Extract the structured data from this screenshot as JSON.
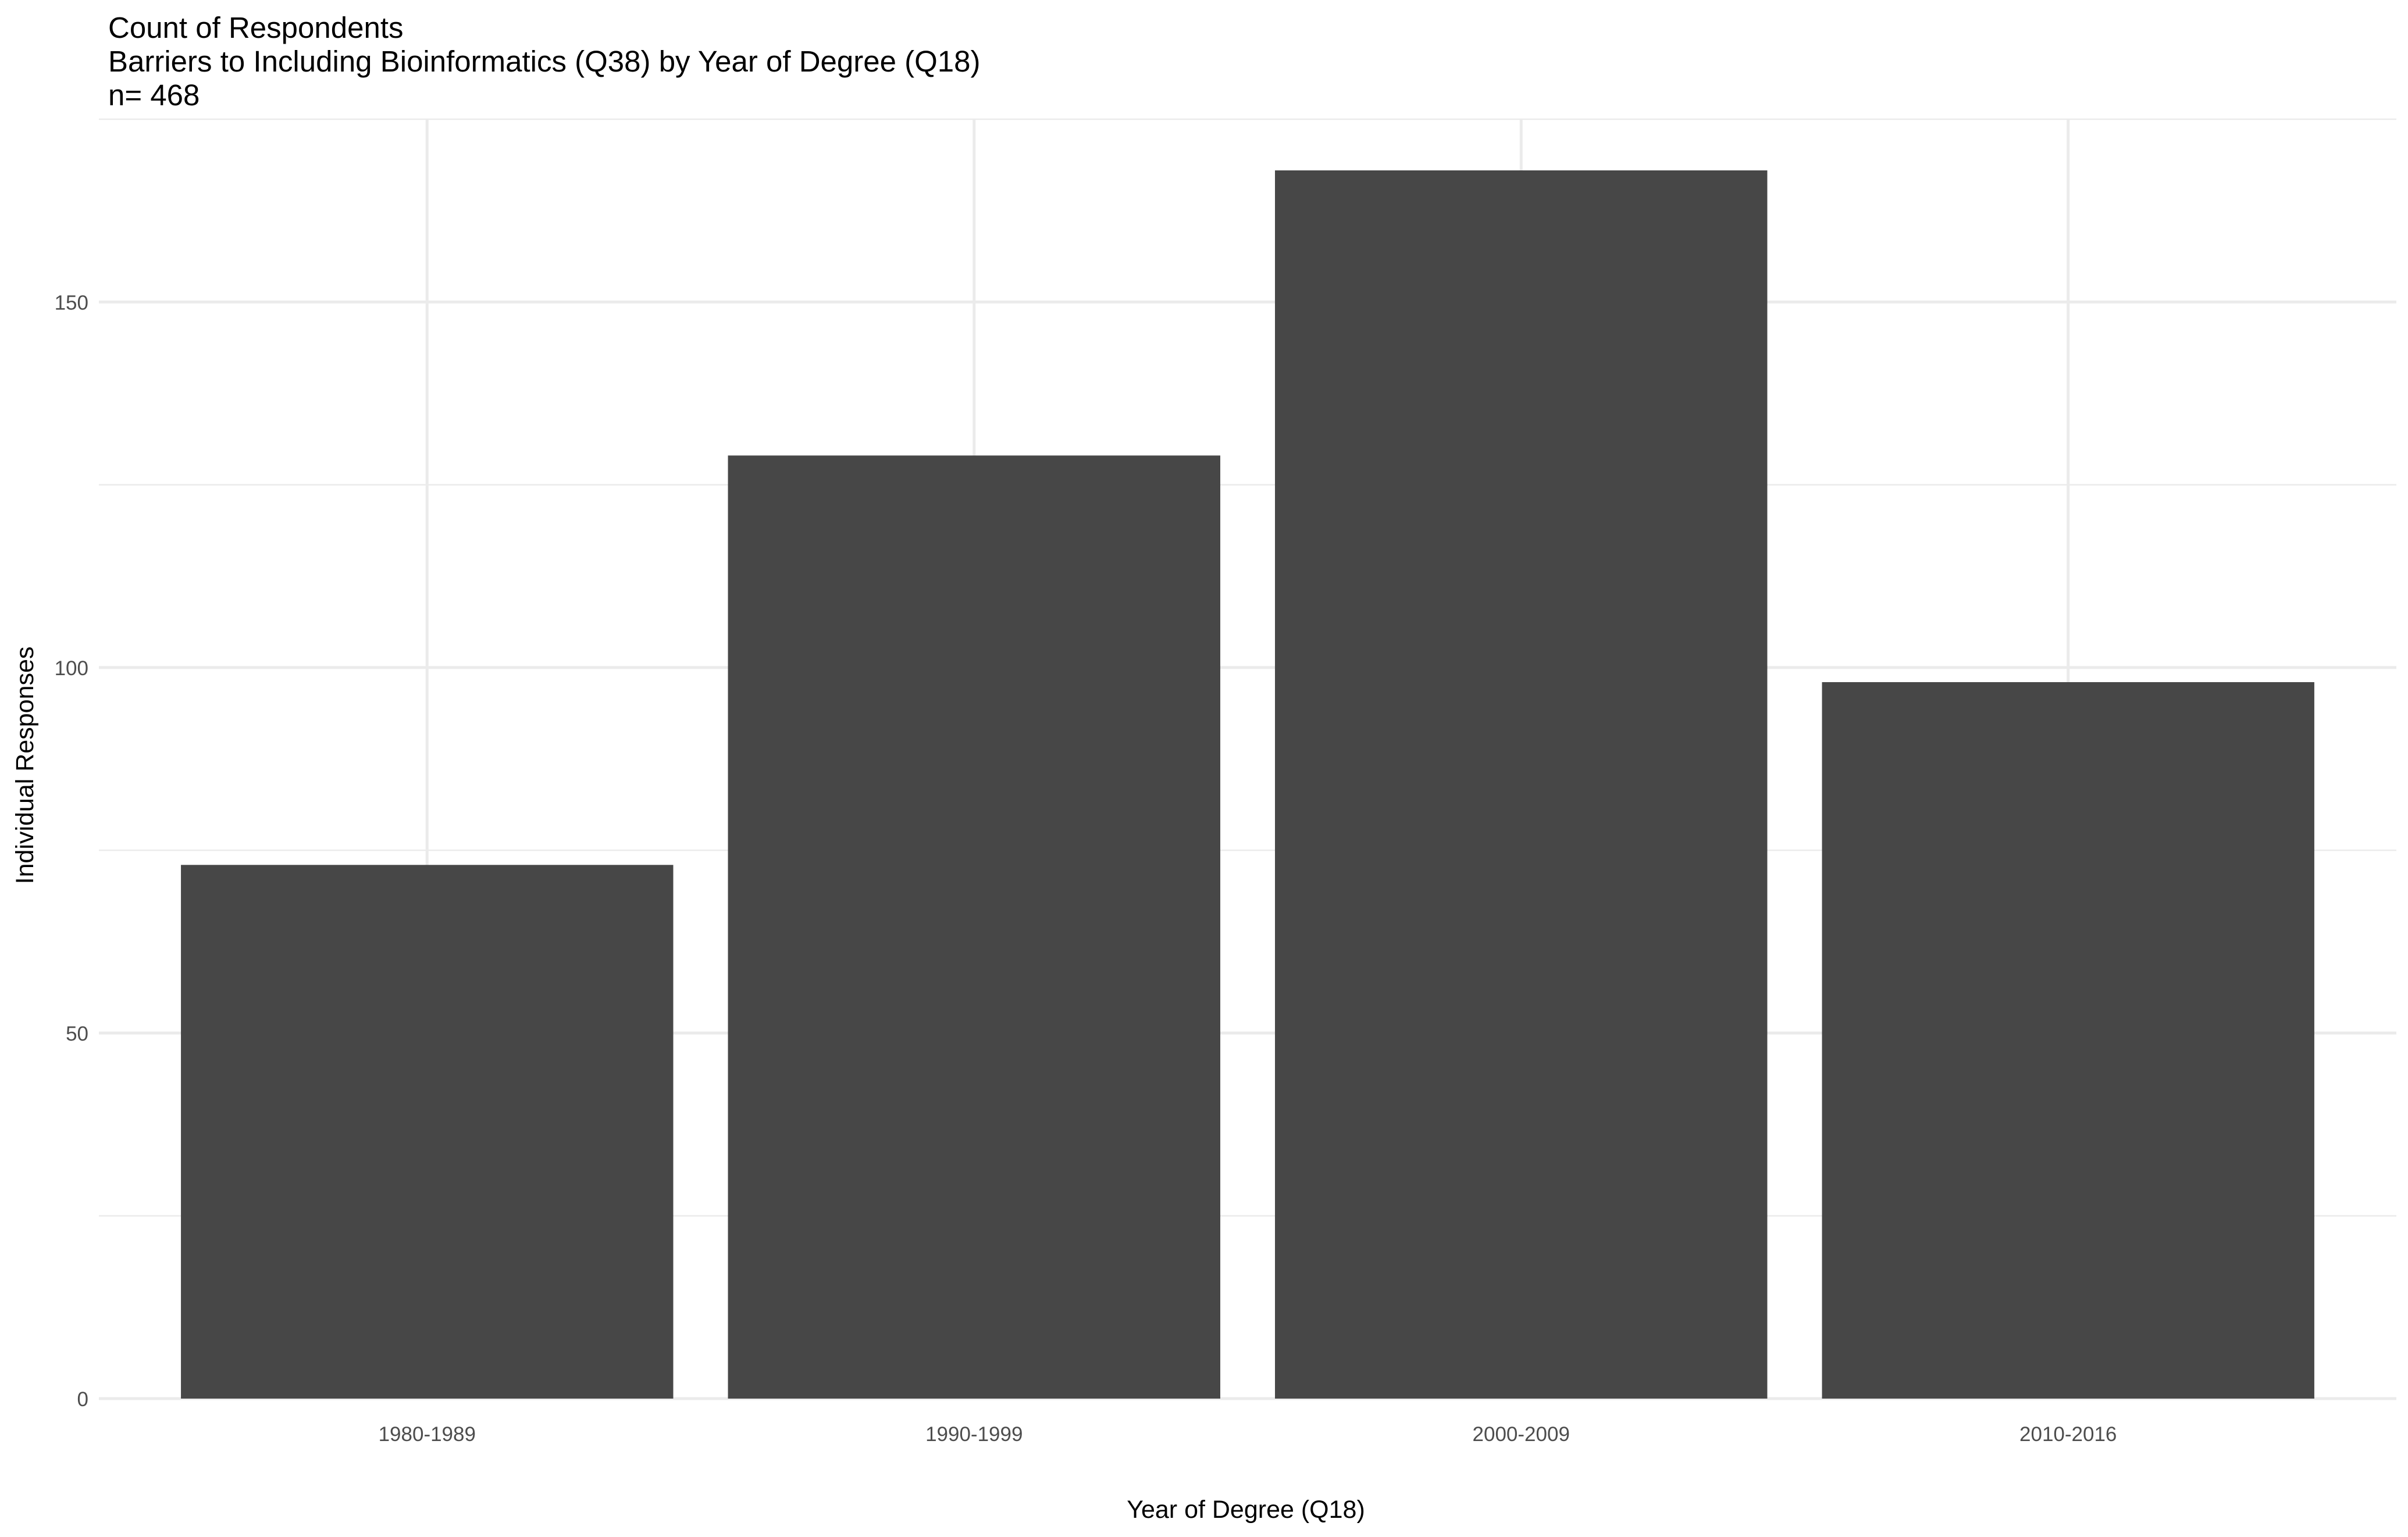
{
  "chart_data": {
    "type": "bar",
    "title": "Count of Respondents",
    "subtitle": "Barriers to Including Bioinformatics (Q38) by Year of Degree (Q18)",
    "caption": "n= 468",
    "xlabel": "Year of Degree (Q18)",
    "ylabel": "Individual Responses",
    "categories": [
      "1980-1989",
      "1990-1999",
      "2000-2009",
      "2010-2016"
    ],
    "values": [
      73,
      129,
      168,
      98
    ],
    "ylim": [
      0,
      175
    ],
    "yticks": [
      0,
      50,
      100,
      150
    ],
    "grid": true,
    "legend": "none",
    "bar_color": "#474747",
    "grid_color": "#ebebeb"
  }
}
